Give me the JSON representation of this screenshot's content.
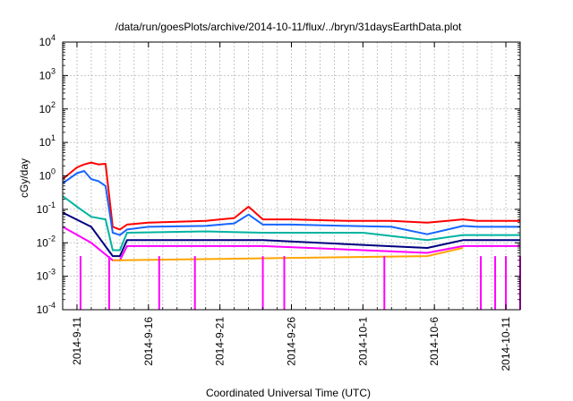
{
  "chart_data": {
    "type": "line",
    "title": "/data/run/goesPlots/archive/2014-10-11/flux/../bryn/31daysEarthData.plot",
    "xlabel": "Coordinated Universal Time (UTC)",
    "ylabel": "cGy/day",
    "y_scale": "log",
    "ylim": [
      0.0001,
      10000
    ],
    "xlim": [
      "2014-09-10",
      "2014-10-12"
    ],
    "y_ticks": [
      {
        "value": 0.0001,
        "base": "10",
        "exp": "-4"
      },
      {
        "value": 0.001,
        "base": "10",
        "exp": "-3"
      },
      {
        "value": 0.01,
        "base": "10",
        "exp": "-2"
      },
      {
        "value": 0.1,
        "base": "10",
        "exp": "-1"
      },
      {
        "value": 1,
        "base": "10",
        "exp": "0"
      },
      {
        "value": 10,
        "base": "10",
        "exp": "1"
      },
      {
        "value": 100,
        "base": "10",
        "exp": "2"
      },
      {
        "value": 1000,
        "base": "10",
        "exp": "3"
      },
      {
        "value": 10000,
        "base": "10",
        "exp": "4"
      }
    ],
    "x_ticks": [
      {
        "date": "2014-09-11",
        "label": "2014-9-11"
      },
      {
        "date": "2014-09-16",
        "label": "2014-9-16"
      },
      {
        "date": "2014-09-21",
        "label": "2014-9-21"
      },
      {
        "date": "2014-09-26",
        "label": "2014-9-26"
      },
      {
        "date": "2014-10-01",
        "label": "2014-10-1"
      },
      {
        "date": "2014-10-06",
        "label": "2014-10-6"
      },
      {
        "date": "2014-10-11",
        "label": "2014-10-11"
      }
    ],
    "grid": true,
    "legend": "none",
    "series": [
      {
        "color": "#ff0000",
        "x": [
          "2014-09-10",
          "2014-09-11",
          "2014-09-11 12:00",
          "2014-09-12",
          "2014-09-12 12:00",
          "2014-09-13",
          "2014-09-13 12:00",
          "2014-09-14",
          "2014-09-14 12:00",
          "2014-09-16",
          "2014-09-20",
          "2014-09-22",
          "2014-09-23",
          "2014-09-24",
          "2014-09-26",
          "2014-09-30",
          "2014-10-03",
          "2014-10-05 12:00",
          "2014-10-08",
          "2014-10-09",
          "2014-10-12"
        ],
        "values": [
          0.8,
          1.8,
          2.2,
          2.5,
          2.2,
          2.3,
          0.03,
          0.025,
          0.035,
          0.04,
          0.045,
          0.055,
          0.12,
          0.05,
          0.05,
          0.045,
          0.045,
          0.04,
          0.05,
          0.045,
          0.045
        ]
      },
      {
        "color": "#1565ff",
        "x": [
          "2014-09-10",
          "2014-09-11",
          "2014-09-11 12:00",
          "2014-09-12",
          "2014-09-12 12:00",
          "2014-09-13",
          "2014-09-13 12:00",
          "2014-09-14",
          "2014-09-14 12:00",
          "2014-09-16",
          "2014-09-20",
          "2014-09-22",
          "2014-09-23",
          "2014-09-24",
          "2014-09-26",
          "2014-09-30",
          "2014-10-03",
          "2014-10-05 12:00",
          "2014-10-08",
          "2014-10-09",
          "2014-10-12"
        ],
        "values": [
          0.6,
          1.2,
          1.4,
          0.8,
          0.7,
          0.5,
          0.02,
          0.017,
          0.025,
          0.03,
          0.032,
          0.038,
          0.07,
          0.035,
          0.035,
          0.032,
          0.03,
          0.018,
          0.032,
          0.03,
          0.03
        ]
      },
      {
        "color": "#00b3a0",
        "x": [
          "2014-09-10",
          "2014-09-11",
          "2014-09-12",
          "2014-09-13",
          "2014-09-13 12:00",
          "2014-09-14",
          "2014-09-14 12:00",
          "2014-09-20",
          "2014-09-24",
          "2014-10-01",
          "2014-10-05 12:00",
          "2014-10-08",
          "2014-10-12"
        ],
        "values": [
          0.25,
          0.12,
          0.06,
          0.05,
          0.006,
          0.006,
          0.02,
          0.022,
          0.02,
          0.02,
          0.012,
          0.017,
          0.017
        ]
      },
      {
        "color": "#000080",
        "x": [
          "2014-09-10",
          "2014-09-12",
          "2014-09-13 12:00",
          "2014-09-14",
          "2014-09-14 12:00",
          "2014-09-24",
          "2014-10-05 12:00",
          "2014-10-08",
          "2014-10-12"
        ],
        "values": [
          0.08,
          0.03,
          0.004,
          0.004,
          0.012,
          0.012,
          0.007,
          0.012,
          0.012
        ]
      },
      {
        "color": "#ff00ff",
        "x": [
          "2014-09-10",
          "2014-09-12",
          "2014-09-13 12:00",
          "2014-09-14",
          "2014-09-14 12:00",
          "2014-09-24",
          "2014-10-05 12:00",
          "2014-10-08",
          "2014-10-12"
        ],
        "values": [
          0.03,
          0.01,
          0.003,
          0.003,
          0.008,
          0.008,
          0.005,
          0.008,
          0.008
        ]
      },
      {
        "color": "#ffa500",
        "x": [
          "2014-09-13 12:00",
          "2014-09-14",
          "2014-10-05 12:00",
          "2014-10-08"
        ],
        "values": [
          0.003,
          0.003,
          0.004,
          0.007
        ]
      }
    ],
    "drops_to_floor": {
      "color": "#ff00ff",
      "x": [
        "2014-09-11 06:00",
        "2014-09-13 06:00",
        "2014-09-16 18:00",
        "2014-09-19 06:00",
        "2014-09-24 00:00",
        "2014-09-25 12:00",
        "2014-10-02 12:00",
        "2014-10-09 06:00",
        "2014-10-10 06:00",
        "2014-10-11 00:00",
        "2014-10-12"
      ],
      "values": [
        0.0001,
        0.0001,
        0.0001,
        0.0001,
        0.0001,
        0.0001,
        0.0001,
        0.0001,
        0.0001,
        0.0001,
        0.0001
      ]
    }
  }
}
